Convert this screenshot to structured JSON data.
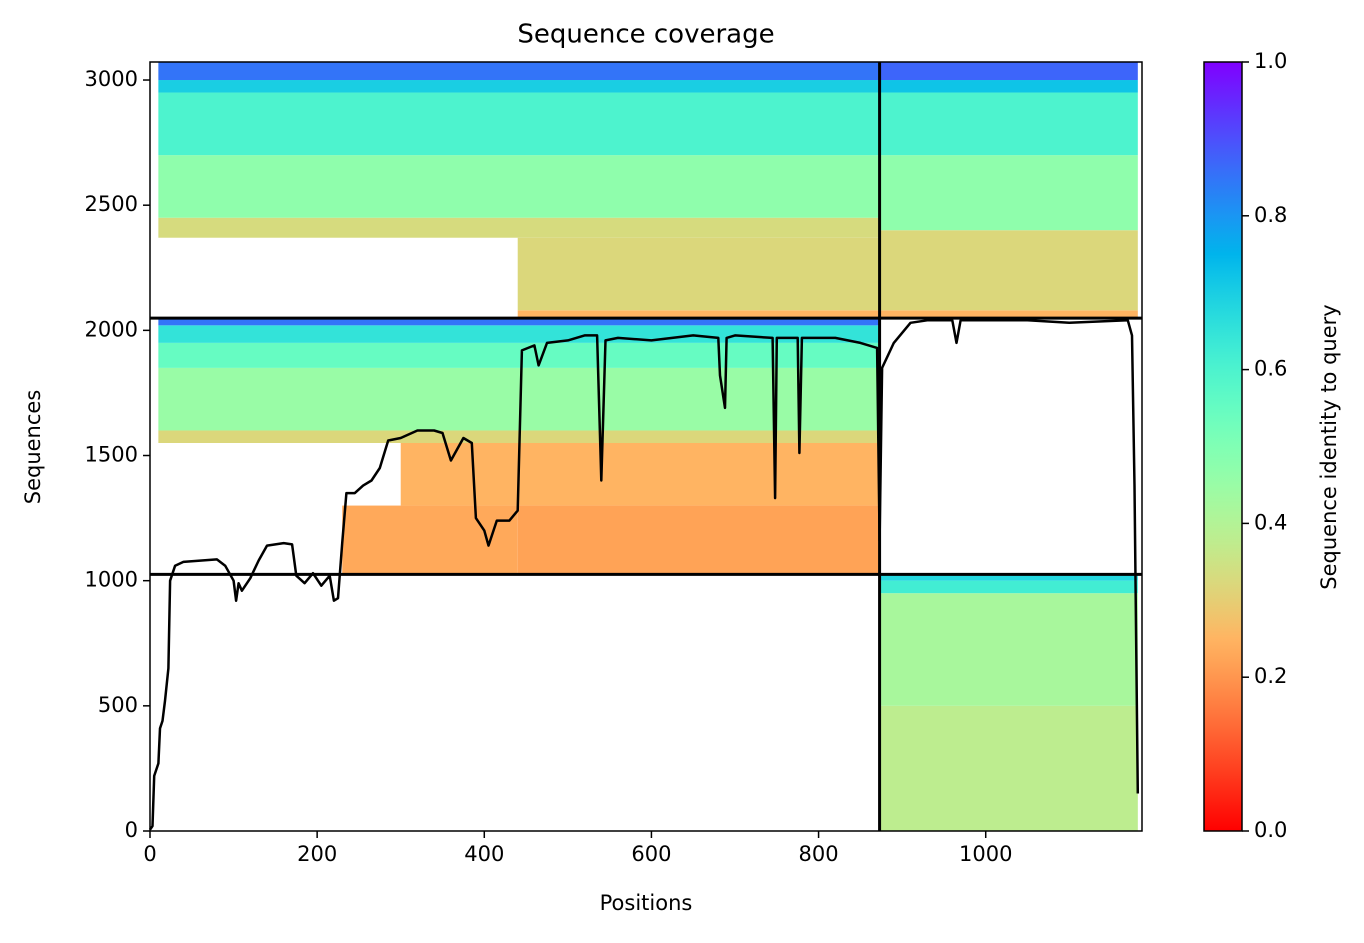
{
  "chart_data": {
    "type": "coverage",
    "title": "Sequence coverage",
    "xlabel": "Positions",
    "ylabel": "Sequences",
    "colorbar_label": "Sequence identity to query",
    "colormap": "rainbow_r",
    "xlim": [
      0,
      1187
    ],
    "ylim": [
      0,
      3072
    ],
    "xticks": [
      0,
      200,
      400,
      600,
      800,
      1000
    ],
    "yticks": [
      0,
      500,
      1000,
      1500,
      2000,
      2500,
      3000
    ],
    "clim": [
      0,
      1
    ],
    "cticks": [
      {
        "value": 0,
        "label": "0.0"
      },
      {
        "value": 0.2,
        "label": "0.2"
      },
      {
        "value": 0.4,
        "label": "0.4"
      },
      {
        "value": 0.6,
        "label": "0.6"
      },
      {
        "value": 0.8,
        "label": "0.8"
      },
      {
        "value": 1,
        "label": "1.0"
      }
    ],
    "dividers": {
      "x": [
        873
      ],
      "y": [
        1025,
        2049
      ]
    },
    "segments": [
      {
        "x": [
          873,
          1182
        ],
        "y": [
          0,
          500
        ],
        "identity": 0.38
      },
      {
        "x": [
          873,
          1182
        ],
        "y": [
          500,
          950
        ],
        "identity": 0.42
      },
      {
        "x": [
          873,
          1182
        ],
        "y": [
          950,
          1000
        ],
        "identity": 0.62
      },
      {
        "x": [
          873,
          1182
        ],
        "y": [
          1000,
          1025
        ],
        "identity": 0.68
      },
      {
        "x": [
          440,
          873
        ],
        "y": [
          1025,
          1300
        ],
        "identity": 0.22
      },
      {
        "x": [
          230,
          440
        ],
        "y": [
          1025,
          1300
        ],
        "identity": 0.23
      },
      {
        "x": [
          300,
          873
        ],
        "y": [
          1300,
          1550
        ],
        "identity": 0.25
      },
      {
        "x": [
          10,
          873
        ],
        "y": [
          1550,
          1600
        ],
        "identity": 0.32
      },
      {
        "x": [
          10,
          873
        ],
        "y": [
          1600,
          1850
        ],
        "identity": 0.45
      },
      {
        "x": [
          10,
          873
        ],
        "y": [
          1850,
          1950
        ],
        "identity": 0.55
      },
      {
        "x": [
          10,
          873
        ],
        "y": [
          1950,
          2020
        ],
        "identity": 0.65
      },
      {
        "x": [
          10,
          873
        ],
        "y": [
          2020,
          2049
        ],
        "identity": 0.85
      },
      {
        "x": [
          440,
          873
        ],
        "y": [
          2049,
          2080
        ],
        "identity": 0.25
      },
      {
        "x": [
          440,
          873
        ],
        "y": [
          2080,
          2370
        ],
        "identity": 0.32
      },
      {
        "x": [
          10,
          873
        ],
        "y": [
          2370,
          2450
        ],
        "identity": 0.33
      },
      {
        "x": [
          10,
          873
        ],
        "y": [
          2450,
          2700
        ],
        "identity": 0.47
      },
      {
        "x": [
          10,
          873
        ],
        "y": [
          2700,
          2950
        ],
        "identity": 0.6
      },
      {
        "x": [
          10,
          873
        ],
        "y": [
          2950,
          3000
        ],
        "identity": 0.7
      },
      {
        "x": [
          10,
          873
        ],
        "y": [
          3000,
          3072
        ],
        "identity": 0.85
      },
      {
        "x": [
          873,
          1182
        ],
        "y": [
          2049,
          2080
        ],
        "identity": 0.25
      },
      {
        "x": [
          873,
          1182
        ],
        "y": [
          2080,
          2400
        ],
        "identity": 0.32
      },
      {
        "x": [
          873,
          1182
        ],
        "y": [
          2400,
          2700
        ],
        "identity": 0.47
      },
      {
        "x": [
          873,
          1182
        ],
        "y": [
          2700,
          2950
        ],
        "identity": 0.6
      },
      {
        "x": [
          873,
          1182
        ],
        "y": [
          2950,
          3000
        ],
        "identity": 0.72
      },
      {
        "x": [
          873,
          1182
        ],
        "y": [
          3000,
          3072
        ],
        "identity": 0.87
      }
    ],
    "coverage": {
      "x": [
        0,
        3,
        5,
        10,
        12,
        15,
        18,
        22,
        24,
        30,
        40,
        60,
        80,
        90,
        100,
        103,
        106,
        110,
        120,
        130,
        140,
        160,
        170,
        175,
        185,
        195,
        205,
        215,
        220,
        225,
        230,
        235,
        245,
        255,
        265,
        275,
        285,
        300,
        320,
        340,
        350,
        360,
        375,
        385,
        390,
        400,
        405,
        415,
        430,
        440,
        445,
        460,
        465,
        475,
        500,
        520,
        535,
        540,
        545,
        560,
        600,
        650,
        680,
        682,
        688,
        690,
        700,
        745,
        748,
        750,
        775,
        777,
        780,
        820,
        850,
        870,
        873,
        876,
        890,
        910,
        930,
        960,
        965,
        970,
        1050,
        1100,
        1170,
        1175,
        1178,
        1180,
        1182
      ],
      "values": [
        5,
        20,
        220,
        270,
        410,
        440,
        520,
        650,
        1000,
        1060,
        1075,
        1080,
        1085,
        1060,
        1000,
        920,
        990,
        960,
        1010,
        1080,
        1140,
        1150,
        1145,
        1020,
        990,
        1030,
        980,
        1020,
        920,
        930,
        1150,
        1350,
        1350,
        1380,
        1400,
        1450,
        1560,
        1570,
        1600,
        1600,
        1590,
        1480,
        1570,
        1550,
        1250,
        1200,
        1140,
        1240,
        1240,
        1280,
        1920,
        1940,
        1860,
        1950,
        1960,
        1980,
        1980,
        1400,
        1960,
        1970,
        1960,
        1980,
        1970,
        1820,
        1690,
        1970,
        1980,
        1970,
        1330,
        1970,
        1970,
        1510,
        1970,
        1970,
        1950,
        1930,
        1160,
        1850,
        1950,
        2030,
        2040,
        2040,
        1950,
        2040,
        2040,
        2030,
        2040,
        1980,
        1380,
        780,
        150
      ]
    }
  }
}
